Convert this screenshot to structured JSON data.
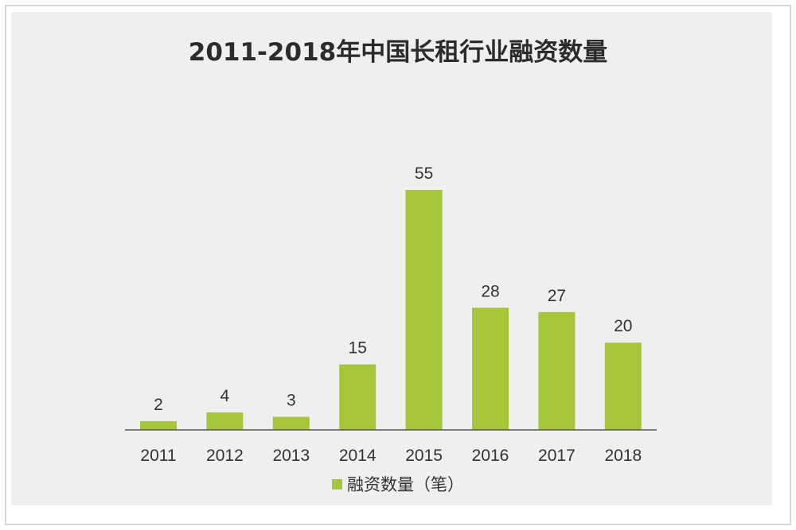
{
  "chart_data": {
    "type": "bar",
    "title": "2011-2018年中国长租行业融资数量",
    "categories": [
      "2011",
      "2012",
      "2013",
      "2014",
      "2015",
      "2016",
      "2017",
      "2018"
    ],
    "series": [
      {
        "name": "融资数量（笔）",
        "values": [
          2,
          4,
          3,
          15,
          55,
          28,
          27,
          20
        ]
      }
    ],
    "data_labels": [
      "2",
      "4",
      "3",
      "15",
      "55",
      "28",
      "27",
      "20"
    ],
    "ylim": [
      0,
      55
    ],
    "grid": false,
    "legend_position": "bottom",
    "bar_color": "#a5c63b",
    "axis_color": "#555555"
  }
}
